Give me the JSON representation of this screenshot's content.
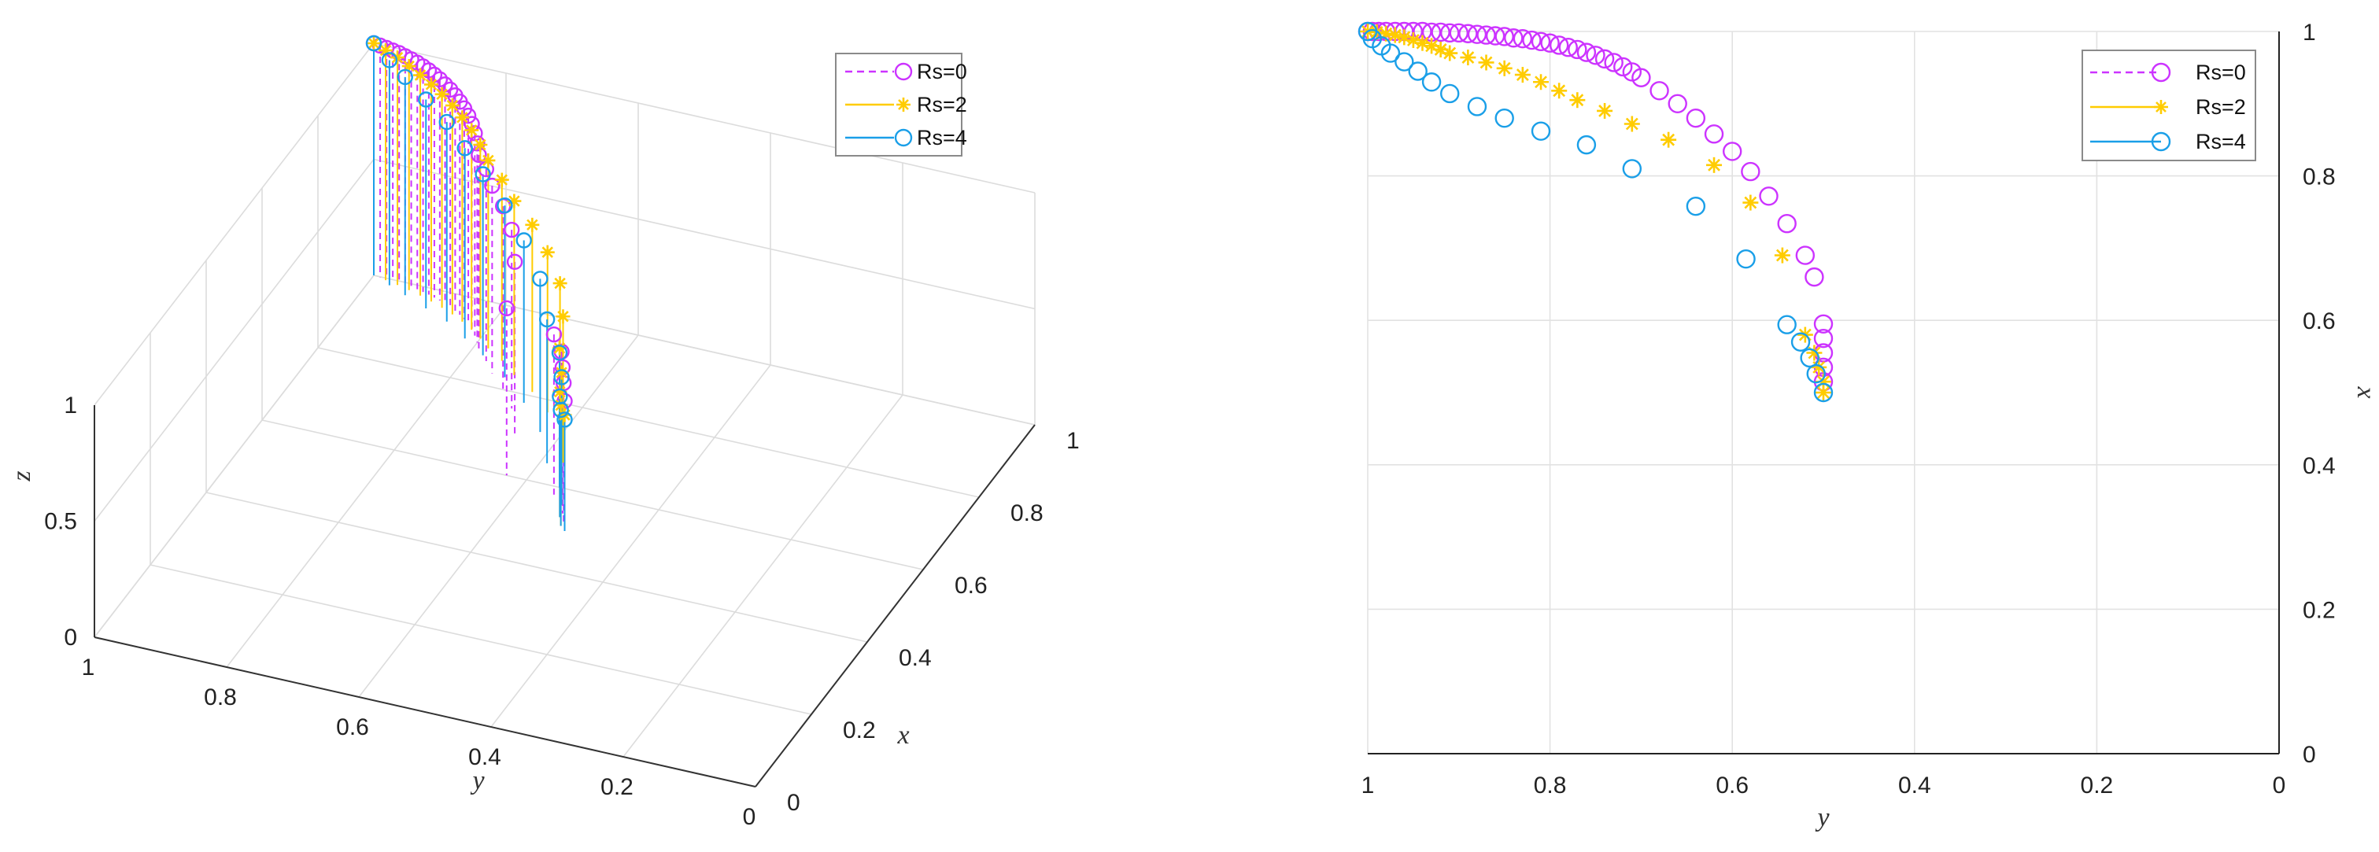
{
  "colors": {
    "rs0": "#cc33ff",
    "rs2": "#ffcc00",
    "rs4": "#1a9fe8"
  },
  "chart_data": [
    {
      "type": "stem3",
      "panel": "left",
      "xlabel": "x",
      "ylabel": "y",
      "zlabel": "z",
      "x_ticks": [
        "0",
        "0.2",
        "0.4",
        "0.6",
        "0.8",
        "1"
      ],
      "y_ticks": [
        "1",
        "0.8",
        "0.6",
        "0.4",
        "0.2",
        "0"
      ],
      "z_ticks": [
        "0",
        "0.5",
        "1"
      ],
      "xlim": [
        0,
        1
      ],
      "ylim": [
        0,
        1
      ],
      "zlim": [
        0,
        1
      ],
      "legend": [
        "Rs=0",
        "Rs=2",
        "Rs=4"
      ],
      "legend_position": "top-right",
      "series": [
        {
          "name": "Rs=0",
          "x": [
            1.0,
            0.999,
            0.998,
            0.997,
            0.996,
            0.994,
            0.992,
            0.99,
            0.987,
            0.984,
            0.98,
            0.976,
            0.971,
            0.966,
            0.96,
            0.953,
            0.945,
            0.936,
            0.925,
            0.912,
            0.897,
            0.879,
            0.858,
            0.832,
            0.8,
            0.76,
            0.7,
            0.6,
            0.58,
            0.56,
            0.54,
            0.52,
            0.5
          ],
          "y": [
            1.0,
            0.99,
            0.98,
            0.97,
            0.96,
            0.95,
            0.94,
            0.93,
            0.92,
            0.91,
            0.9,
            0.89,
            0.88,
            0.87,
            0.86,
            0.85,
            0.84,
            0.83,
            0.82,
            0.81,
            0.8,
            0.79,
            0.77,
            0.75,
            0.72,
            0.69,
            0.66,
            0.63,
            0.55,
            0.53,
            0.52,
            0.51,
            0.5
          ],
          "z": [
            1.0,
            0.998,
            0.996,
            0.993,
            0.99,
            0.986,
            0.982,
            0.977,
            0.972,
            0.966,
            0.96,
            0.953,
            0.945,
            0.937,
            0.928,
            0.918,
            0.908,
            0.897,
            0.885,
            0.872,
            0.858,
            0.843,
            0.827,
            0.809,
            0.79,
            0.77,
            0.745,
            0.72,
            0.69,
            0.66,
            0.63,
            0.6,
            0.56
          ]
        },
        {
          "name": "Rs=2",
          "x": [
            1.0,
            0.995,
            0.99,
            0.984,
            0.977,
            0.969,
            0.96,
            0.95,
            0.938,
            0.924,
            0.908,
            0.889,
            0.867,
            0.84,
            0.81,
            0.77,
            0.72,
            0.66,
            0.6,
            0.56,
            0.53,
            0.51,
            0.5
          ],
          "y": [
            1.0,
            0.98,
            0.96,
            0.94,
            0.92,
            0.9,
            0.88,
            0.86,
            0.84,
            0.82,
            0.8,
            0.78,
            0.75,
            0.72,
            0.68,
            0.64,
            0.6,
            0.57,
            0.55,
            0.53,
            0.52,
            0.51,
            0.5
          ],
          "z": [
            1.0,
            0.99,
            0.98,
            0.965,
            0.95,
            0.935,
            0.92,
            0.9,
            0.88,
            0.86,
            0.835,
            0.81,
            0.78,
            0.75,
            0.72,
            0.69,
            0.66,
            0.63,
            0.6,
            0.57,
            0.54,
            0.52,
            0.5
          ]
        },
        {
          "name": "Rs=4",
          "x": [
            1.0,
            0.985,
            0.97,
            0.95,
            0.93,
            0.9,
            0.87,
            0.83,
            0.78,
            0.72,
            0.65,
            0.6,
            0.56,
            0.53,
            0.51,
            0.5
          ],
          "y": [
            1.0,
            0.97,
            0.94,
            0.9,
            0.86,
            0.82,
            0.78,
            0.73,
            0.68,
            0.63,
            0.59,
            0.55,
            0.53,
            0.52,
            0.51,
            0.5
          ],
          "z": [
            1.0,
            0.97,
            0.94,
            0.9,
            0.86,
            0.82,
            0.78,
            0.74,
            0.7,
            0.66,
            0.62,
            0.58,
            0.55,
            0.52,
            0.5,
            0.48
          ]
        }
      ]
    },
    {
      "type": "line",
      "panel": "right",
      "xlabel": "y",
      "ylabel": "x",
      "x_ticks": [
        "1",
        "0.8",
        "0.6",
        "0.4",
        "0.2",
        "0"
      ],
      "y_ticks": [
        "0",
        "0.2",
        "0.4",
        "0.6",
        "0.8",
        "1"
      ],
      "xlim": [
        1,
        0
      ],
      "ylim": [
        0,
        1
      ],
      "x_reversed": true,
      "y_axis_side": "right",
      "grid": true,
      "legend": [
        "Rs=0",
        "Rs=2",
        "Rs=4"
      ],
      "legend_position": "top-right",
      "series": [
        {
          "name": "Rs=0",
          "line_style": "dashed",
          "marker": "circle",
          "y": [
            1.0,
            0.995,
            0.988,
            0.98,
            0.97,
            0.96,
            0.95,
            0.94,
            0.93,
            0.92,
            0.91,
            0.9,
            0.89,
            0.88,
            0.87,
            0.86,
            0.85,
            0.84,
            0.83,
            0.82,
            0.81,
            0.8,
            0.79,
            0.78,
            0.77,
            0.76,
            0.75,
            0.74,
            0.73,
            0.72,
            0.71,
            0.7,
            0.68,
            0.66,
            0.64,
            0.62,
            0.6,
            0.58,
            0.56,
            0.54,
            0.52,
            0.51,
            0.5,
            0.5,
            0.5,
            0.5,
            0.5
          ],
          "x": [
            1.0,
            1.0,
            1.0,
            1.0,
            1.0,
            1.0,
            1.0,
            1.0,
            0.999,
            0.999,
            0.998,
            0.998,
            0.997,
            0.996,
            0.995,
            0.994,
            0.993,
            0.991,
            0.99,
            0.988,
            0.986,
            0.984,
            0.981,
            0.978,
            0.975,
            0.971,
            0.967,
            0.962,
            0.957,
            0.951,
            0.944,
            0.936,
            0.918,
            0.9,
            0.88,
            0.858,
            0.834,
            0.806,
            0.772,
            0.734,
            0.69,
            0.66,
            0.595,
            0.575,
            0.555,
            0.535,
            0.515
          ]
        },
        {
          "name": "Rs=2",
          "line_style": "solid",
          "marker": "asterisk",
          "y": [
            1.0,
            0.99,
            0.98,
            0.97,
            0.96,
            0.95,
            0.94,
            0.93,
            0.92,
            0.91,
            0.89,
            0.87,
            0.85,
            0.83,
            0.81,
            0.79,
            0.77,
            0.74,
            0.71,
            0.67,
            0.62,
            0.58,
            0.545,
            0.52,
            0.51,
            0.505,
            0.5,
            0.5
          ],
          "x": [
            1.0,
            0.999,
            0.997,
            0.995,
            0.992,
            0.988,
            0.984,
            0.98,
            0.975,
            0.97,
            0.964,
            0.957,
            0.949,
            0.94,
            0.93,
            0.918,
            0.905,
            0.89,
            0.872,
            0.85,
            0.815,
            0.763,
            0.69,
            0.58,
            0.555,
            0.535,
            0.515,
            0.5
          ]
        },
        {
          "name": "Rs=4",
          "line_style": "solid",
          "marker": "circle",
          "y": [
            1.0,
            0.995,
            0.985,
            0.975,
            0.96,
            0.945,
            0.93,
            0.91,
            0.88,
            0.85,
            0.81,
            0.76,
            0.71,
            0.64,
            0.585,
            0.54,
            0.525,
            0.515,
            0.508,
            0.5
          ],
          "x": [
            1.0,
            0.99,
            0.98,
            0.97,
            0.958,
            0.945,
            0.93,
            0.914,
            0.896,
            0.88,
            0.862,
            0.843,
            0.81,
            0.758,
            0.685,
            0.594,
            0.57,
            0.548,
            0.526,
            0.5
          ]
        }
      ]
    }
  ]
}
